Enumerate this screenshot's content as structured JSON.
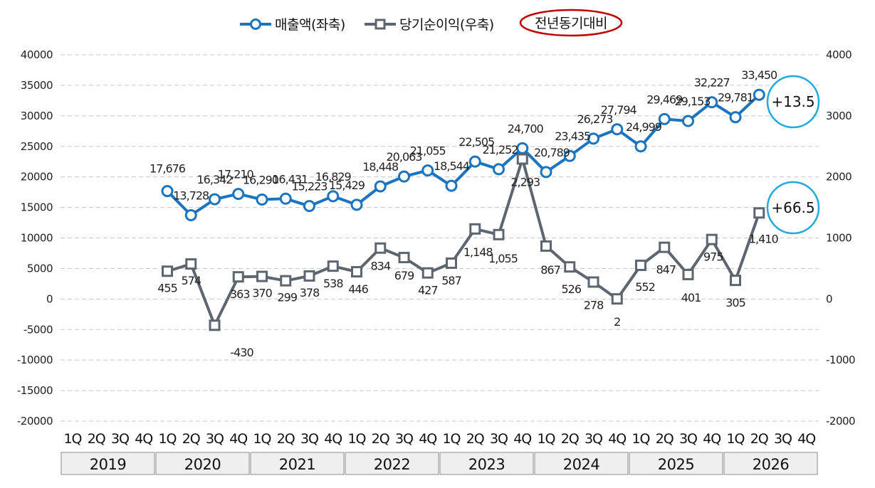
{
  "chart_data": {
    "type": "line",
    "colors": {
      "revenue": "#1a74c0",
      "profit": "#5d6670",
      "yoy_oval": "#c00000",
      "callout_circle": "#22a9dd"
    },
    "legend": {
      "placement": "top-center",
      "items": [
        {
          "key": "revenue",
          "label": "매출액(좌축)"
        },
        {
          "key": "profit",
          "label": "당기순이익(우축)"
        }
      ],
      "badge": "전년동기대비"
    },
    "axes": {
      "left": {
        "min": -20000,
        "max": 40000,
        "step": 5000,
        "ticks": [
          "40000",
          "35000",
          "30000",
          "25000",
          "20000",
          "15000",
          "10000",
          "5000",
          "0",
          "-5000",
          "-10000",
          "-15000",
          "-20000"
        ]
      },
      "right": {
        "min": -2000,
        "max": 4000,
        "step": 1000,
        "ticks": [
          "4000",
          "3000",
          "2000",
          "1000",
          "0",
          "-1000",
          "-2000"
        ]
      },
      "grid": "dashed-horizontal"
    },
    "quarters": [
      "1Q",
      "2Q",
      "3Q",
      "4Q"
    ],
    "years": [
      "2019",
      "2020",
      "2021",
      "2022",
      "2023",
      "2024",
      "2025",
      "2026"
    ],
    "series": [
      {
        "name": "매출액(좌축)",
        "key": "revenue",
        "axis": "left",
        "start_index": 4,
        "values": [
          17676,
          13728,
          16342,
          17210,
          16290,
          16431,
          15223,
          16829,
          15429,
          18448,
          20063,
          21055,
          18544,
          22505,
          21252,
          24700,
          20789,
          23435,
          26273,
          27794,
          24999,
          29469,
          29153,
          32227,
          29781,
          33450
        ],
        "labels": [
          "17,676",
          "13,728",
          "16,342",
          "17,210",
          "16,290",
          "16,431",
          "15,223",
          "16,829",
          "15,429",
          "18,448",
          "20,063",
          "21,055",
          "18,544",
          "22,505",
          "21,252",
          "24,700",
          "20,789",
          "23,435",
          "26,273",
          "27,794",
          "24,999",
          "29,469",
          "29,153",
          "32,227",
          "29,781",
          "33,450"
        ],
        "yoy": "+13.5"
      },
      {
        "name": "당기순이익(우축)",
        "key": "profit",
        "axis": "right",
        "start_index": 4,
        "values": [
          455,
          574,
          -430,
          363,
          370,
          299,
          378,
          538,
          446,
          834,
          679,
          427,
          587,
          1148,
          1055,
          2293,
          867,
          526,
          278,
          2,
          552,
          847,
          401,
          975,
          305,
          1410
        ],
        "labels": [
          "455",
          "574",
          "-430",
          "363",
          "370",
          "299",
          "378",
          "538",
          "446",
          "834",
          "679",
          "427",
          "587",
          "1,148",
          "1,055",
          "2,293",
          "867",
          "526",
          "278",
          "2",
          "552",
          "847",
          "401",
          "975",
          "305",
          "1,410"
        ],
        "yoy": "+66.5"
      }
    ]
  }
}
